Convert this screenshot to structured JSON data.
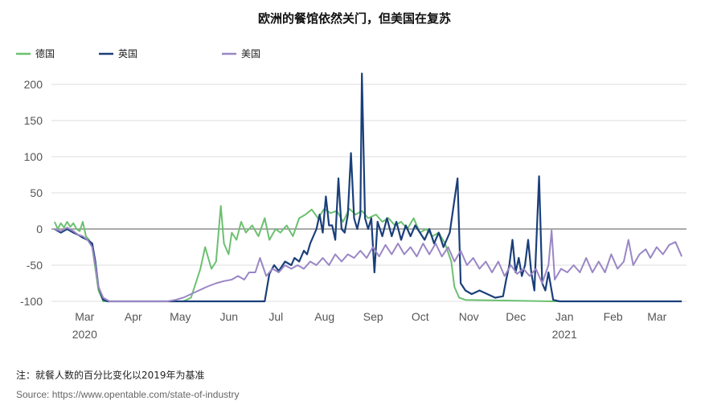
{
  "chart_data": {
    "type": "line",
    "title": "欧洲的餐馆依然关门，但美国在复苏",
    "ylim": [
      -100,
      220
    ],
    "yticks": [
      -100,
      -50,
      0,
      50,
      100,
      150,
      200
    ],
    "x_range": [
      "2020-02-16",
      "2021-03-27"
    ],
    "x_ticks": [
      {
        "date": "2020-03-01",
        "label": "Mar",
        "year": "2020"
      },
      {
        "date": "2020-04-01",
        "label": "Apr"
      },
      {
        "date": "2020-05-01",
        "label": "May"
      },
      {
        "date": "2020-06-01",
        "label": "Jun"
      },
      {
        "date": "2020-07-01",
        "label": "Jul"
      },
      {
        "date": "2020-08-01",
        "label": "Aug"
      },
      {
        "date": "2020-09-01",
        "label": "Sep"
      },
      {
        "date": "2020-10-01",
        "label": "Oct"
      },
      {
        "date": "2020-11-01",
        "label": "Nov"
      },
      {
        "date": "2020-12-01",
        "label": "Dec"
      },
      {
        "date": "2021-01-01",
        "label": "Jan",
        "year": "2021"
      },
      {
        "date": "2021-02-01",
        "label": "Feb"
      },
      {
        "date": "2021-03-01",
        "label": "Mar"
      }
    ],
    "grid": true,
    "legend_position": "top-left",
    "series": [
      {
        "name": "德国",
        "color": "#6cc070",
        "points": [
          [
            "2020-02-18",
            10
          ],
          [
            "2020-02-20",
            0
          ],
          [
            "2020-02-22",
            8
          ],
          [
            "2020-02-24",
            2
          ],
          [
            "2020-02-26",
            10
          ],
          [
            "2020-02-28",
            3
          ],
          [
            "2020-03-01",
            8
          ],
          [
            "2020-03-03",
            0
          ],
          [
            "2020-03-05",
            -3
          ],
          [
            "2020-03-07",
            10
          ],
          [
            "2020-03-09",
            -10
          ],
          [
            "2020-03-11",
            -15
          ],
          [
            "2020-03-13",
            -25
          ],
          [
            "2020-03-15",
            -55
          ],
          [
            "2020-03-17",
            -85
          ],
          [
            "2020-03-20",
            -100
          ],
          [
            "2020-05-10",
            -100
          ],
          [
            "2020-05-15",
            -95
          ],
          [
            "2020-05-18",
            -75
          ],
          [
            "2020-05-21",
            -55
          ],
          [
            "2020-05-24",
            -25
          ],
          [
            "2020-05-26",
            -40
          ],
          [
            "2020-05-28",
            -55
          ],
          [
            "2020-05-31",
            -45
          ],
          [
            "2020-06-03",
            32
          ],
          [
            "2020-06-05",
            -20
          ],
          [
            "2020-06-08",
            -35
          ],
          [
            "2020-06-10",
            -5
          ],
          [
            "2020-06-13",
            -15
          ],
          [
            "2020-06-16",
            10
          ],
          [
            "2020-06-19",
            -5
          ],
          [
            "2020-06-23",
            5
          ],
          [
            "2020-06-27",
            -10
          ],
          [
            "2020-07-01",
            15
          ],
          [
            "2020-07-04",
            -15
          ],
          [
            "2020-07-08",
            0
          ],
          [
            "2020-07-11",
            -5
          ],
          [
            "2020-07-15",
            5
          ],
          [
            "2020-07-19",
            -10
          ],
          [
            "2020-07-23",
            15
          ],
          [
            "2020-07-27",
            20
          ],
          [
            "2020-07-31",
            27
          ],
          [
            "2020-08-04",
            15
          ],
          [
            "2020-08-08",
            28
          ],
          [
            "2020-08-12",
            22
          ],
          [
            "2020-08-16",
            25
          ],
          [
            "2020-08-20",
            10
          ],
          [
            "2020-08-24",
            28
          ],
          [
            "2020-08-28",
            20
          ],
          [
            "2020-09-01",
            25
          ],
          [
            "2020-09-05",
            15
          ],
          [
            "2020-09-10",
            20
          ],
          [
            "2020-09-14",
            10
          ],
          [
            "2020-09-18",
            15
          ],
          [
            "2020-09-22",
            5
          ],
          [
            "2020-09-26",
            10
          ],
          [
            "2020-09-30",
            0
          ],
          [
            "2020-10-04",
            15
          ],
          [
            "2020-10-08",
            -5
          ],
          [
            "2020-10-12",
            0
          ],
          [
            "2020-10-16",
            -10
          ],
          [
            "2020-10-20",
            -5
          ],
          [
            "2020-10-24",
            -20
          ],
          [
            "2020-10-28",
            -45
          ],
          [
            "2020-10-30",
            -80
          ],
          [
            "2020-11-02",
            -95
          ],
          [
            "2020-11-06",
            -98
          ],
          [
            "2020-12-31",
            -100
          ],
          [
            "2021-03-24",
            -100
          ]
        ]
      },
      {
        "name": "英国",
        "color": "#1a3f7a",
        "points": [
          [
            "2020-02-18",
            0
          ],
          [
            "2020-02-22",
            -5
          ],
          [
            "2020-02-26",
            0
          ],
          [
            "2020-03-01",
            -5
          ],
          [
            "2020-03-04",
            -8
          ],
          [
            "2020-03-07",
            -12
          ],
          [
            "2020-03-10",
            -15
          ],
          [
            "2020-03-13",
            -20
          ],
          [
            "2020-03-15",
            -45
          ],
          [
            "2020-03-17",
            -80
          ],
          [
            "2020-03-20",
            -98
          ],
          [
            "2020-03-23",
            -100
          ],
          [
            "2020-06-25",
            -100
          ],
          [
            "2020-07-01",
            -100
          ],
          [
            "2020-07-04",
            -62
          ],
          [
            "2020-07-07",
            -50
          ],
          [
            "2020-07-10",
            -58
          ],
          [
            "2020-07-14",
            -45
          ],
          [
            "2020-07-18",
            -50
          ],
          [
            "2020-07-20",
            -40
          ],
          [
            "2020-07-23",
            -45
          ],
          [
            "2020-07-26",
            -30
          ],
          [
            "2020-07-28",
            -35
          ],
          [
            "2020-07-30",
            -20
          ],
          [
            "2020-08-01",
            -10
          ],
          [
            "2020-08-03",
            0
          ],
          [
            "2020-08-05",
            20
          ],
          [
            "2020-08-07",
            -5
          ],
          [
            "2020-08-09",
            45
          ],
          [
            "2020-08-11",
            5
          ],
          [
            "2020-08-13",
            5
          ],
          [
            "2020-08-15",
            -15
          ],
          [
            "2020-08-17",
            70
          ],
          [
            "2020-08-19",
            0
          ],
          [
            "2020-08-21",
            -5
          ],
          [
            "2020-08-23",
            20
          ],
          [
            "2020-08-25",
            105
          ],
          [
            "2020-08-27",
            15
          ],
          [
            "2020-08-29",
            0
          ],
          [
            "2020-08-31",
            20
          ],
          [
            "2020-09-01",
            215
          ],
          [
            "2020-09-03",
            15
          ],
          [
            "2020-09-05",
            0
          ],
          [
            "2020-09-07",
            15
          ],
          [
            "2020-09-09",
            -60
          ],
          [
            "2020-09-11",
            10
          ],
          [
            "2020-09-14",
            -10
          ],
          [
            "2020-09-17",
            15
          ],
          [
            "2020-09-20",
            -10
          ],
          [
            "2020-09-23",
            10
          ],
          [
            "2020-09-26",
            -15
          ],
          [
            "2020-09-29",
            5
          ],
          [
            "2020-10-02",
            -10
          ],
          [
            "2020-10-05",
            5
          ],
          [
            "2020-10-08",
            -5
          ],
          [
            "2020-10-11",
            -15
          ],
          [
            "2020-10-14",
            0
          ],
          [
            "2020-10-17",
            -20
          ],
          [
            "2020-10-20",
            -5
          ],
          [
            "2020-10-23",
            -25
          ],
          [
            "2020-10-27",
            -5
          ],
          [
            "2020-10-30",
            40
          ],
          [
            "2020-11-01",
            70
          ],
          [
            "2020-11-03",
            -75
          ],
          [
            "2020-11-06",
            -85
          ],
          [
            "2020-11-10",
            -90
          ],
          [
            "2020-11-15",
            -85
          ],
          [
            "2020-11-20",
            -90
          ],
          [
            "2020-11-25",
            -95
          ],
          [
            "2020-11-30",
            -93
          ],
          [
            "2020-12-02",
            -70
          ],
          [
            "2020-12-04",
            -50
          ],
          [
            "2020-12-06",
            -15
          ],
          [
            "2020-12-08",
            -60
          ],
          [
            "2020-12-10",
            -40
          ],
          [
            "2020-12-12",
            -65
          ],
          [
            "2020-12-14",
            -50
          ],
          [
            "2020-12-16",
            -15
          ],
          [
            "2020-12-18",
            -60
          ],
          [
            "2020-12-20",
            -85
          ],
          [
            "2020-12-23",
            73
          ],
          [
            "2020-12-25",
            -75
          ],
          [
            "2020-12-27",
            -85
          ],
          [
            "2020-12-29",
            -60
          ],
          [
            "2021-01-01",
            -98
          ],
          [
            "2021-01-05",
            -100
          ],
          [
            "2021-03-24",
            -100
          ]
        ]
      },
      {
        "name": "美国",
        "color": "#9a86c5",
        "points": [
          [
            "2020-02-18",
            0
          ],
          [
            "2020-02-22",
            -3
          ],
          [
            "2020-02-26",
            2
          ],
          [
            "2020-03-01",
            -3
          ],
          [
            "2020-03-04",
            -8
          ],
          [
            "2020-03-07",
            -10
          ],
          [
            "2020-03-10",
            -15
          ],
          [
            "2020-03-13",
            -25
          ],
          [
            "2020-03-15",
            -50
          ],
          [
            "2020-03-17",
            -80
          ],
          [
            "2020-03-20",
            -95
          ],
          [
            "2020-03-24",
            -100
          ],
          [
            "2020-04-30",
            -100
          ],
          [
            "2020-05-05",
            -98
          ],
          [
            "2020-05-10",
            -95
          ],
          [
            "2020-05-15",
            -90
          ],
          [
            "2020-05-20",
            -85
          ],
          [
            "2020-05-25",
            -80
          ],
          [
            "2020-05-31",
            -75
          ],
          [
            "2020-06-05",
            -72
          ],
          [
            "2020-06-10",
            -70
          ],
          [
            "2020-06-14",
            -65
          ],
          [
            "2020-06-18",
            -70
          ],
          [
            "2020-06-21",
            -60
          ],
          [
            "2020-06-25",
            -60
          ],
          [
            "2020-06-28",
            -40
          ],
          [
            "2020-07-02",
            -65
          ],
          [
            "2020-07-06",
            -55
          ],
          [
            "2020-07-10",
            -60
          ],
          [
            "2020-07-14",
            -50
          ],
          [
            "2020-07-18",
            -55
          ],
          [
            "2020-07-22",
            -50
          ],
          [
            "2020-07-26",
            -55
          ],
          [
            "2020-07-30",
            -45
          ],
          [
            "2020-08-03",
            -50
          ],
          [
            "2020-08-07",
            -40
          ],
          [
            "2020-08-11",
            -50
          ],
          [
            "2020-08-15",
            -35
          ],
          [
            "2020-08-19",
            -45
          ],
          [
            "2020-08-23",
            -35
          ],
          [
            "2020-08-27",
            -40
          ],
          [
            "2020-08-31",
            -30
          ],
          [
            "2020-09-04",
            -40
          ],
          [
            "2020-09-08",
            -25
          ],
          [
            "2020-09-12",
            -38
          ],
          [
            "2020-09-16",
            -22
          ],
          [
            "2020-09-20",
            -35
          ],
          [
            "2020-09-24",
            -20
          ],
          [
            "2020-09-28",
            -35
          ],
          [
            "2020-10-02",
            -25
          ],
          [
            "2020-10-06",
            -38
          ],
          [
            "2020-10-10",
            -20
          ],
          [
            "2020-10-14",
            -35
          ],
          [
            "2020-10-18",
            -20
          ],
          [
            "2020-10-22",
            -38
          ],
          [
            "2020-10-26",
            -25
          ],
          [
            "2020-10-30",
            -45
          ],
          [
            "2020-11-03",
            -30
          ],
          [
            "2020-11-07",
            -50
          ],
          [
            "2020-11-11",
            -40
          ],
          [
            "2020-11-15",
            -55
          ],
          [
            "2020-11-19",
            -45
          ],
          [
            "2020-11-23",
            -60
          ],
          [
            "2020-11-27",
            -45
          ],
          [
            "2020-12-01",
            -65
          ],
          [
            "2020-12-05",
            -50
          ],
          [
            "2020-12-09",
            -62
          ],
          [
            "2020-12-13",
            -55
          ],
          [
            "2020-12-17",
            -65
          ],
          [
            "2020-12-21",
            -55
          ],
          [
            "2020-12-25",
            -75
          ],
          [
            "2020-12-29",
            -50
          ],
          [
            "2020-12-31",
            -2
          ],
          [
            "2021-01-02",
            -70
          ],
          [
            "2021-01-06",
            -55
          ],
          [
            "2021-01-10",
            -60
          ],
          [
            "2021-01-14",
            -50
          ],
          [
            "2021-01-18",
            -60
          ],
          [
            "2021-01-22",
            -40
          ],
          [
            "2021-01-26",
            -60
          ],
          [
            "2021-01-30",
            -45
          ],
          [
            "2021-02-03",
            -60
          ],
          [
            "2021-02-07",
            -35
          ],
          [
            "2021-02-11",
            -55
          ],
          [
            "2021-02-15",
            -45
          ],
          [
            "2021-02-18",
            -15
          ],
          [
            "2021-02-21",
            -50
          ],
          [
            "2021-02-25",
            -35
          ],
          [
            "2021-03-01",
            -28
          ],
          [
            "2021-03-04",
            -40
          ],
          [
            "2021-03-08",
            -25
          ],
          [
            "2021-03-12",
            -35
          ],
          [
            "2021-03-16",
            -22
          ],
          [
            "2021-03-20",
            -18
          ],
          [
            "2021-03-24",
            -38
          ]
        ]
      }
    ]
  },
  "note": "注：就餐人数的百分比变化以2019年为基准",
  "source": "Source: https://www.opentable.com/state-of-industry"
}
